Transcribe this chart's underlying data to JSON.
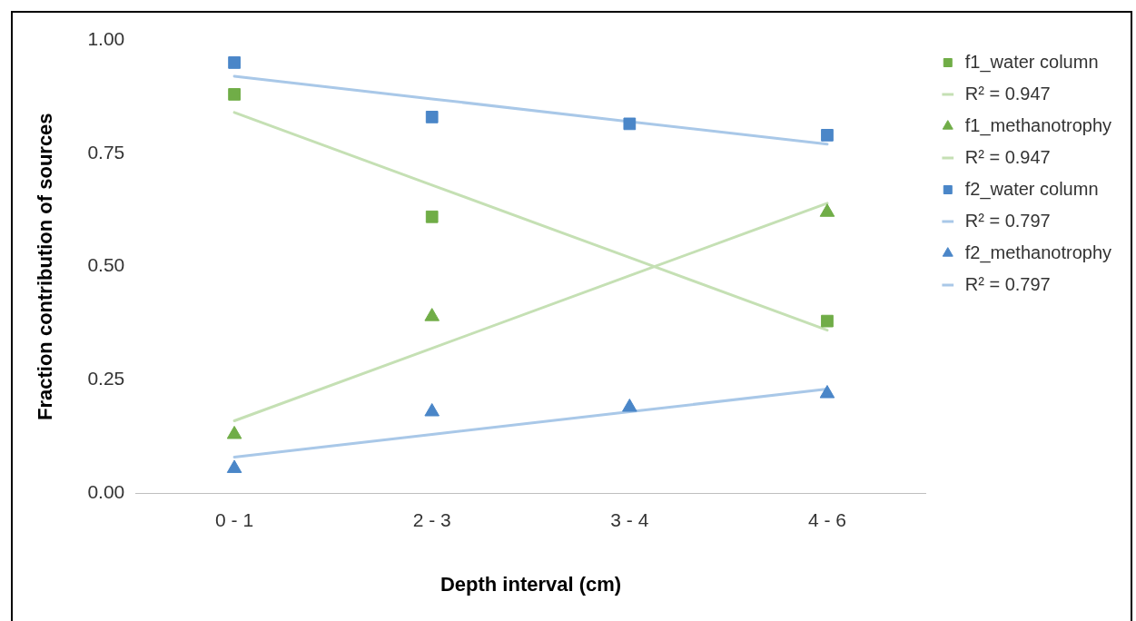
{
  "chart_data": {
    "type": "scatter",
    "xlabel": "Depth interval (cm)",
    "ylabel": "Fraction contribution of sources",
    "categories": [
      "0 - 1",
      "2 - 3",
      "3 - 4",
      "4 - 6"
    ],
    "ylim": [
      0,
      1
    ],
    "yticks": [
      {
        "value": 0,
        "label": "0.00"
      },
      {
        "value": 0.25,
        "label": "0.25"
      },
      {
        "value": 0.5,
        "label": "0.50"
      },
      {
        "value": 0.75,
        "label": "0.75"
      },
      {
        "value": 1,
        "label": "1.00"
      }
    ],
    "grid": false,
    "legend": "right",
    "series": [
      {
        "name": "f1_water column",
        "type": "scatter",
        "marker": "square",
        "color": "#70ad47",
        "values": [
          0.88,
          0.61,
          null,
          0.38
        ]
      },
      {
        "name": "R² = 0.947",
        "type": "line",
        "marker": "none",
        "line_style": "solid",
        "color": "#c5e0b4",
        "values": [
          0.84,
          0.68,
          0.52,
          0.36
        ]
      },
      {
        "name": "f1_methanotrophy",
        "type": "scatter",
        "marker": "triangle",
        "color": "#70ad47",
        "values": [
          0.13,
          0.39,
          null,
          0.62
        ]
      },
      {
        "name": "R² = 0.947",
        "type": "line",
        "marker": "none",
        "line_style": "solid",
        "color": "#c5e0b4",
        "values": [
          0.16,
          0.32,
          0.48,
          0.64
        ]
      },
      {
        "name": "f2_water column",
        "type": "scatter",
        "marker": "square",
        "color": "#4a86c8",
        "values": [
          0.95,
          0.83,
          0.815,
          0.79
        ]
      },
      {
        "name": "R² = 0.797",
        "type": "line",
        "marker": "none",
        "line_style": "solid",
        "color": "#a9c8e8",
        "values": [
          0.92,
          0.87,
          0.82,
          0.77
        ]
      },
      {
        "name": "f2_methanotrophy",
        "type": "scatter",
        "marker": "triangle",
        "color": "#4a86c8",
        "values": [
          0.055,
          0.18,
          0.19,
          0.22
        ]
      },
      {
        "name": "R² = 0.797",
        "type": "line",
        "marker": "none",
        "line_style": "solid",
        "color": "#a9c8e8",
        "values": [
          0.08,
          0.13,
          0.18,
          0.23
        ]
      }
    ]
  }
}
